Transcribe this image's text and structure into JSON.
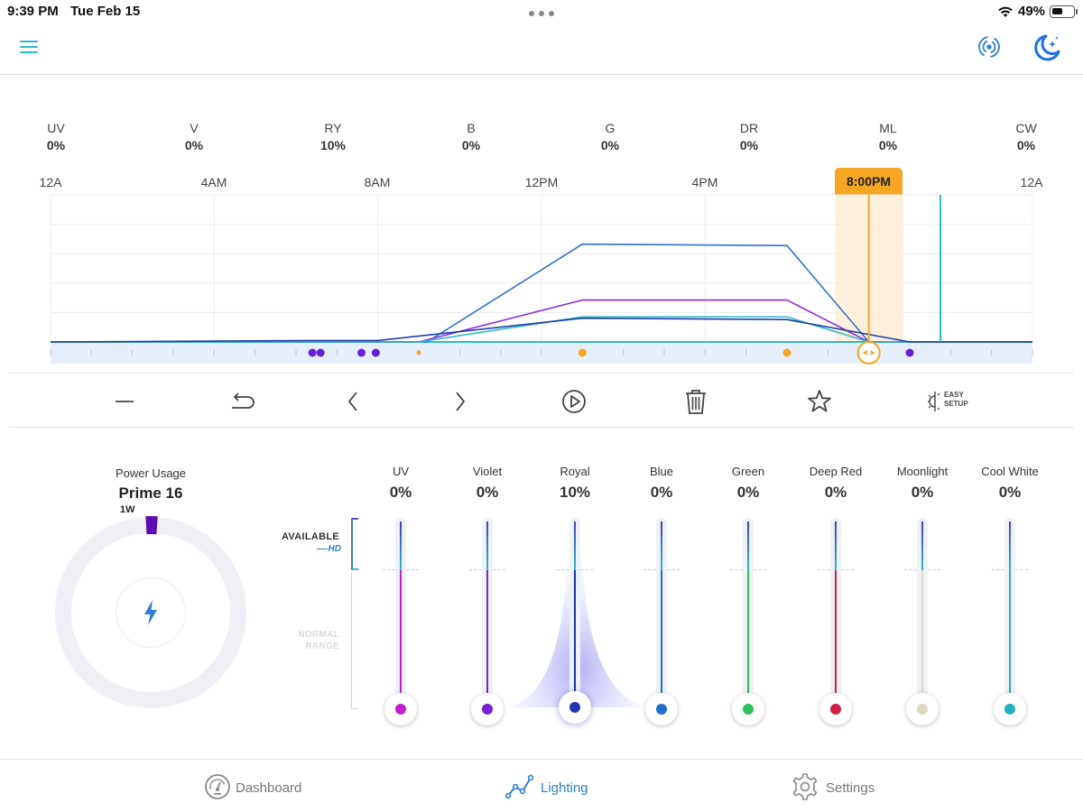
{
  "status_bar": {
    "time": "9:39 PM",
    "date": "Tue Feb 15",
    "battery": "49%",
    "battery_level": 0.49
  },
  "header": {
    "menu_icon": "hamburger-menu-icon",
    "signal_icon": "wireless-signal-icon",
    "mode_icon": "moon-stars-icon",
    "accent_color": "#2fb9c9",
    "blue_color": "#2b7fd3"
  },
  "channels": [
    {
      "label": "UV",
      "value": "0%"
    },
    {
      "label": "V",
      "value": "0%"
    },
    {
      "label": "RY",
      "value": "10%"
    },
    {
      "label": "B",
      "value": "0%"
    },
    {
      "label": "G",
      "value": "0%"
    },
    {
      "label": "DR",
      "value": "0%"
    },
    {
      "label": "ML",
      "value": "0%"
    },
    {
      "label": "CW",
      "value": "0%"
    }
  ],
  "time_axis": {
    "ticks": [
      "12A",
      "4AM",
      "8AM",
      "12PM",
      "4PM",
      "8:00PM",
      "12A"
    ],
    "marker_label": "8:00PM",
    "marker_hour": 20,
    "now_hour": 21.75,
    "marker_color": "#f5a623"
  },
  "chart_data": {
    "type": "line",
    "xlim": [
      0,
      24
    ],
    "ylim": [
      0,
      100
    ],
    "series": [
      {
        "color": "#2f6fd0",
        "points": [
          [
            0,
            0
          ],
          [
            9.2,
            0
          ],
          [
            13,
            70
          ],
          [
            18,
            69
          ],
          [
            20,
            0
          ],
          [
            24,
            0
          ]
        ]
      },
      {
        "color": "#8a2be2",
        "points": [
          [
            0,
            0
          ],
          [
            9,
            0
          ],
          [
            13,
            30
          ],
          [
            18,
            30
          ],
          [
            20,
            0
          ],
          [
            24,
            0
          ]
        ]
      },
      {
        "color": "#2fb9c9",
        "points": [
          [
            0,
            0
          ],
          [
            9,
            0
          ],
          [
            13,
            18
          ],
          [
            18,
            18
          ],
          [
            20,
            0
          ],
          [
            24,
            0
          ]
        ]
      },
      {
        "color": "#1f3fa8",
        "points": [
          [
            0,
            0
          ],
          [
            6.5,
            1
          ],
          [
            8,
            1
          ],
          [
            13,
            17
          ],
          [
            18,
            16
          ],
          [
            21,
            0
          ],
          [
            24,
            0
          ]
        ]
      }
    ],
    "dots": [
      {
        "hour": 6.4,
        "color": "#6a1fd6"
      },
      {
        "hour": 6.6,
        "color": "#6a1fd6"
      },
      {
        "hour": 7.6,
        "color": "#6a1fd6"
      },
      {
        "hour": 7.95,
        "color": "#6a1fd6"
      },
      {
        "hour": 9.0,
        "color": "#f5a623",
        "small": true
      },
      {
        "hour": 13.0,
        "color": "#f5a623"
      },
      {
        "hour": 18.0,
        "color": "#f5a623"
      },
      {
        "hour": 21.0,
        "color": "#6a1fd6"
      }
    ]
  },
  "toolbar": {
    "minus_icon": "minus-icon",
    "undo_icon": "undo-icon",
    "prev_icon": "chevron-left-icon",
    "next_icon": "chevron-right-icon",
    "play_icon": "play-circle-icon",
    "delete_icon": "trash-icon",
    "favorite_icon": "star-icon",
    "easy_setup_line1": "EASY",
    "easy_setup_line2": "SETUP"
  },
  "power": {
    "label": "Power Usage",
    "device": "Prime 16",
    "watts": "1W",
    "usage_fraction": 0.02,
    "ring_color": "#eef0f5",
    "usage_color": "#5b0fb3",
    "bolt_color": "#2b7fd3"
  },
  "zones": {
    "available": "AVAILABLE",
    "hd": "HD",
    "normal_line1": "NORMAL",
    "normal_line2": "RANGE"
  },
  "sliders": [
    {
      "label": "UV",
      "value": "0%",
      "level": 0,
      "color": "#c21fcc"
    },
    {
      "label": "Violet",
      "value": "0%",
      "level": 0,
      "color": "#7b1fd0"
    },
    {
      "label": "Royal",
      "value": "10%",
      "level": 10,
      "color": "#1f35b5"
    },
    {
      "label": "Blue",
      "value": "0%",
      "level": 0,
      "color": "#1f6fc8"
    },
    {
      "label": "Green",
      "value": "0%",
      "level": 0,
      "color": "#2dbf5a"
    },
    {
      "label": "Deep Red",
      "value": "0%",
      "level": 0,
      "color": "#d01f45"
    },
    {
      "label": "Moonlight",
      "value": "0%",
      "level": 0,
      "color": "#ddd8c0"
    },
    {
      "label": "Cool White",
      "value": "0%",
      "level": 0,
      "color": "#20b0c0"
    }
  ],
  "bottom_nav": [
    {
      "label": "Dashboard",
      "icon": "gauge-icon",
      "active": false
    },
    {
      "label": "Lighting",
      "icon": "line-chart-icon",
      "active": true
    },
    {
      "label": "Settings",
      "icon": "gear-icon",
      "active": false
    }
  ]
}
